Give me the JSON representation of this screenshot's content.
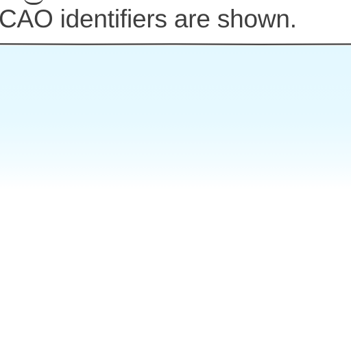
{
  "caption": {
    "text": "CAO identifiers are shown."
  },
  "colors": {
    "text": "#3f3f3f",
    "divider": "#4a4a4a",
    "panel_top": "#e3f8ff",
    "panel_bottom": "#ffffff"
  }
}
